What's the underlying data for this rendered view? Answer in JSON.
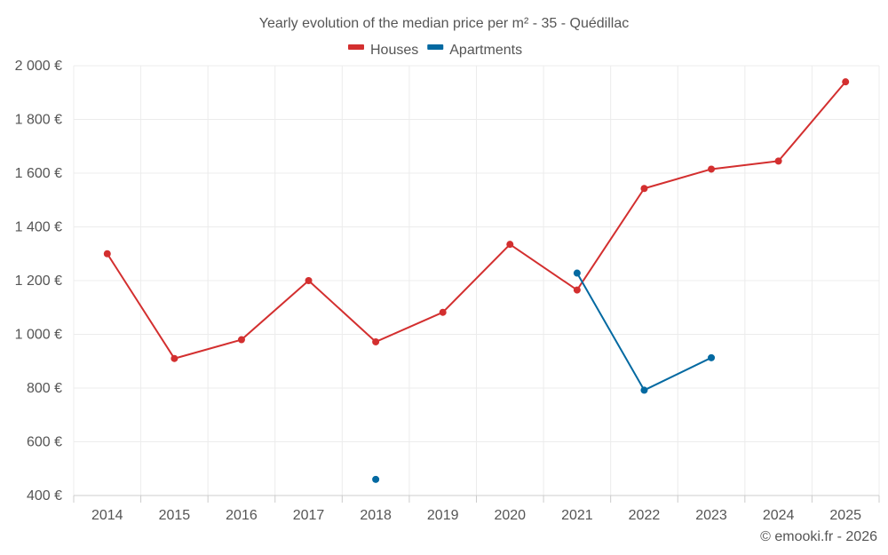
{
  "chart_data": {
    "type": "line",
    "title": "Yearly evolution of the median price per m² - 35 - Quédillac",
    "categories": [
      "2014",
      "2015",
      "2016",
      "2017",
      "2018",
      "2019",
      "2020",
      "2021",
      "2022",
      "2023",
      "2024",
      "2025"
    ],
    "ylim": [
      400,
      2000
    ],
    "yticks": [
      400,
      600,
      800,
      1000,
      1200,
      1400,
      1600,
      1800,
      2000
    ],
    "ytick_labels": [
      "400 €",
      "600 €",
      "800 €",
      "1 000 €",
      "1 200 €",
      "1 400 €",
      "1 600 €",
      "1 800 €",
      "2 000 €"
    ],
    "grid": true,
    "legend_position": "top-center",
    "series": [
      {
        "name": "Houses",
        "color": "#d32f2f",
        "values": [
          1300,
          910,
          980,
          1200,
          972,
          1082,
          1335,
          1165,
          1543,
          1615,
          1645,
          1940
        ]
      },
      {
        "name": "Apartments",
        "color": "#0369a1",
        "values": [
          null,
          null,
          null,
          null,
          460,
          null,
          null,
          1228,
          792,
          913,
          null,
          null
        ]
      }
    ]
  },
  "credit": "© emooki.fr - 2026"
}
